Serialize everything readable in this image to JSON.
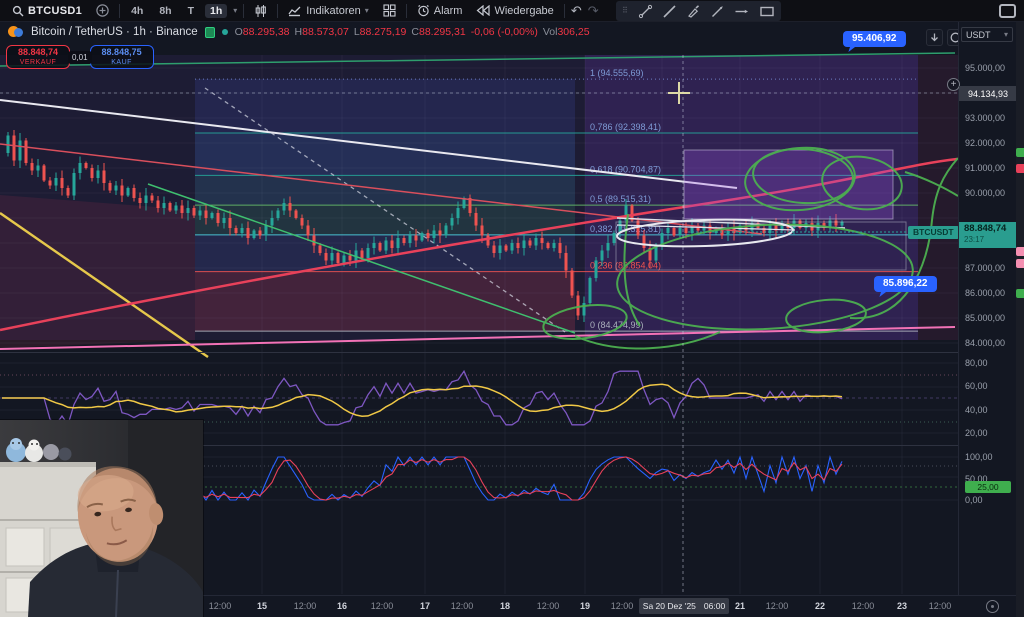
{
  "topbar": {
    "symbol_search": "BTCUSD1",
    "timeframes": [
      "4h",
      "8h",
      "T",
      "1h"
    ],
    "active_timeframe": "1h",
    "indicators_label": "Indikatoren",
    "alarm_label": "Alarm",
    "replay_label": "Wiedergabe"
  },
  "legend": {
    "symbol_title": "Bitcoin / TetherUS · 1h · Binance",
    "ohlc": {
      "o_prefix": "O",
      "o": "88.295,38",
      "h_prefix": "H",
      "h": "88.573,07",
      "l_prefix": "L",
      "l": "88.275,19",
      "c_prefix": "C",
      "c": "88.295,31",
      "change": "-0,06 (-0,00%)",
      "vol_prefix": "Vol",
      "vol": "306,25"
    }
  },
  "trade_panel": {
    "sell_price": "88.848,74",
    "sell_label": "VERKAUF",
    "spread": "0,01",
    "buy_price": "88.848,75",
    "buy_label": "KAUF"
  },
  "callouts": {
    "upper": "95.406,92",
    "lower": "85.896,22"
  },
  "crosshair": {
    "price_label": "94.134,93",
    "date_label": "Sa 20 Dez '25",
    "time_label": "06:00"
  },
  "last_trade": {
    "ticker_tag": "BTCUSDT",
    "price": "88.848,74",
    "countdown": "23:17"
  },
  "fib_labels": [
    "1 (94.555,69)",
    "0,786 (92.398,41)",
    "0,618 (90.704,87)",
    "0,5 (89.515,31)",
    "0,382 (88.325,81)",
    "0,236 (86.854,04)",
    "0 (84.474,99)"
  ],
  "price_axis": {
    "currency": "USDT",
    "ticks": [
      {
        "value": 95000,
        "label": "95.000,00"
      },
      {
        "value": 93000,
        "label": "93.000,00"
      },
      {
        "value": 92000,
        "label": "92.000,00"
      },
      {
        "value": 91000,
        "label": "91.000,00"
      },
      {
        "value": 90000,
        "label": "90.000,00"
      },
      {
        "value": 88000,
        "label": "88.000,00"
      },
      {
        "value": 87000,
        "label": "87.000,00"
      },
      {
        "value": 86000,
        "label": "86.000,00"
      },
      {
        "value": 85000,
        "label": "85.000,00"
      },
      {
        "value": 84000,
        "label": "84.000,00"
      }
    ],
    "rsi_ticks": [
      {
        "value": 80,
        "label": "80,00"
      },
      {
        "value": 60,
        "label": "60,00"
      },
      {
        "value": 40,
        "label": "40,00"
      },
      {
        "value": 20,
        "label": "20,00"
      }
    ],
    "stoch_ticks": [
      {
        "value": 100,
        "label": "100,00"
      },
      {
        "value": 50,
        "label": "50,00"
      },
      {
        "value": 0,
        "label": "0,00"
      }
    ],
    "stoch_current": "25,00"
  },
  "time_axis": {
    "left_ticks": [
      {
        "label": "12:00",
        "bold": false
      },
      {
        "label": "15",
        "bold": true
      },
      {
        "label": "12:00",
        "bold": false
      },
      {
        "label": "16",
        "bold": true
      },
      {
        "label": "12:00",
        "bold": false
      },
      {
        "label": "17",
        "bold": true
      },
      {
        "label": "12:00",
        "bold": false
      },
      {
        "label": "18",
        "bold": true
      },
      {
        "label": "12:00",
        "bold": false
      },
      {
        "label": "19",
        "bold": true
      },
      {
        "label": "12:00",
        "bold": false
      }
    ],
    "right_ticks": [
      {
        "label": "21",
        "bold": true
      },
      {
        "label": "12:00",
        "bold": false
      },
      {
        "label": "22",
        "bold": true
      },
      {
        "label": "12:00",
        "bold": false
      },
      {
        "label": "23",
        "bold": true
      },
      {
        "label": "12:00",
        "bold": false
      }
    ]
  },
  "chart_data": {
    "type": "candlestick",
    "symbol": "BTCUSDT",
    "exchange": "Binance",
    "interval": "1h",
    "last_price": 88848.74,
    "y_axis_visible_range": [
      83800,
      95600
    ],
    "marked_prices": {
      "upper_callout": 95406.92,
      "lower_callout": 85896.22,
      "crosshair_price": 94134.93
    },
    "fib_retracement": {
      "levels": [
        1,
        0.786,
        0.618,
        0.5,
        0.382,
        0.236,
        0
      ],
      "prices": [
        94555.69,
        92398.41,
        90704.87,
        89515.31,
        88325.81,
        86854.04,
        84474.99
      ]
    },
    "oscillator_pane_scale": [
      20,
      80
    ],
    "stochastic_pane_scale": [
      0,
      100
    ],
    "stochastic_current": 25.0,
    "price_path": [
      [
        2,
        91.6
      ],
      [
        8,
        92.3
      ],
      [
        14,
        91.3
      ],
      [
        20,
        92.1
      ],
      [
        26,
        91.2
      ],
      [
        32,
        90.9
      ],
      [
        38,
        91.1
      ],
      [
        44,
        90.5
      ],
      [
        50,
        90.3
      ],
      [
        56,
        90.6
      ],
      [
        62,
        90.2
      ],
      [
        68,
        89.9
      ],
      [
        74,
        90.8
      ],
      [
        80,
        91.2
      ],
      [
        86,
        91.0
      ],
      [
        92,
        90.6
      ],
      [
        98,
        90.9
      ],
      [
        104,
        90.4
      ],
      [
        110,
        90.1
      ],
      [
        116,
        90.3
      ],
      [
        122,
        89.9
      ],
      [
        128,
        90.2
      ],
      [
        134,
        89.8
      ],
      [
        140,
        89.6
      ],
      [
        146,
        89.9
      ],
      [
        152,
        89.7
      ],
      [
        158,
        89.4
      ],
      [
        164,
        89.6
      ],
      [
        170,
        89.3
      ],
      [
        176,
        89.5
      ],
      [
        182,
        89.2
      ],
      [
        188,
        89.4
      ],
      [
        194,
        89.1
      ],
      [
        200,
        89.3
      ],
      [
        206,
        89.0
      ],
      [
        212,
        89.2
      ],
      [
        218,
        88.8
      ],
      [
        224,
        89.0
      ],
      [
        230,
        88.6
      ],
      [
        236,
        88.4
      ],
      [
        242,
        88.6
      ],
      [
        248,
        88.2
      ],
      [
        254,
        88.5
      ],
      [
        260,
        88.3
      ],
      [
        266,
        88.7
      ],
      [
        272,
        89.0
      ],
      [
        278,
        89.3
      ],
      [
        284,
        89.6
      ],
      [
        290,
        89.3
      ],
      [
        296,
        89.0
      ],
      [
        302,
        88.7
      ],
      [
        308,
        88.3
      ],
      [
        314,
        87.9
      ],
      [
        320,
        87.6
      ],
      [
        326,
        87.3
      ],
      [
        332,
        87.6
      ],
      [
        338,
        87.2
      ],
      [
        344,
        87.5
      ],
      [
        350,
        87.3
      ],
      [
        356,
        87.7
      ],
      [
        362,
        87.4
      ],
      [
        368,
        87.8
      ],
      [
        374,
        88.0
      ],
      [
        380,
        87.7
      ],
      [
        386,
        88.1
      ],
      [
        392,
        87.8
      ],
      [
        398,
        88.2
      ],
      [
        404,
        88.0
      ],
      [
        410,
        88.3
      ],
      [
        416,
        88.1
      ],
      [
        422,
        88.4
      ],
      [
        428,
        88.2
      ],
      [
        434,
        88.5
      ],
      [
        440,
        88.3
      ],
      [
        446,
        88.7
      ],
      [
        452,
        89.0
      ],
      [
        458,
        89.4
      ],
      [
        464,
        89.8
      ],
      [
        470,
        89.2
      ],
      [
        476,
        88.7
      ],
      [
        482,
        88.3
      ],
      [
        488,
        87.9
      ],
      [
        494,
        87.6
      ],
      [
        500,
        87.9
      ],
      [
        506,
        87.7
      ],
      [
        512,
        88.0
      ],
      [
        518,
        87.8
      ],
      [
        524,
        88.1
      ],
      [
        530,
        87.9
      ],
      [
        536,
        88.2
      ],
      [
        542,
        88.0
      ],
      [
        548,
        87.8
      ],
      [
        554,
        88.0
      ],
      [
        560,
        87.6
      ],
      [
        566,
        86.9
      ],
      [
        572,
        85.9
      ],
      [
        578,
        85.1
      ],
      [
        584,
        85.6
      ],
      [
        590,
        86.6
      ],
      [
        596,
        87.3
      ],
      [
        602,
        87.7
      ],
      [
        608,
        88.0
      ],
      [
        614,
        88.4
      ],
      [
        620,
        88.9
      ],
      [
        626,
        89.5
      ],
      [
        632,
        88.9
      ],
      [
        638,
        88.3
      ],
      [
        644,
        87.8
      ],
      [
        650,
        87.3
      ],
      [
        656,
        87.9
      ],
      [
        662,
        88.4
      ],
      [
        668,
        88.6
      ],
      [
        674,
        88.3
      ],
      [
        680,
        88.6
      ],
      [
        686,
        88.4
      ],
      [
        692,
        88.7
      ],
      [
        698,
        88.5
      ],
      [
        704,
        88.7
      ],
      [
        710,
        88.4
      ],
      [
        716,
        88.6
      ],
      [
        722,
        88.3
      ],
      [
        728,
        88.6
      ],
      [
        734,
        88.4
      ],
      [
        740,
        88.7
      ],
      [
        746,
        88.5
      ],
      [
        752,
        88.8
      ],
      [
        758,
        88.6
      ],
      [
        764,
        88.4
      ],
      [
        770,
        88.7
      ],
      [
        776,
        88.5
      ],
      [
        782,
        88.8
      ],
      [
        788,
        88.6
      ],
      [
        794,
        88.9
      ],
      [
        800,
        88.6
      ],
      [
        806,
        88.8
      ],
      [
        812,
        88.5
      ],
      [
        818,
        88.8
      ],
      [
        824,
        88.6
      ],
      [
        830,
        88.9
      ],
      [
        836,
        88.7
      ],
      [
        842,
        88.85
      ]
    ]
  }
}
